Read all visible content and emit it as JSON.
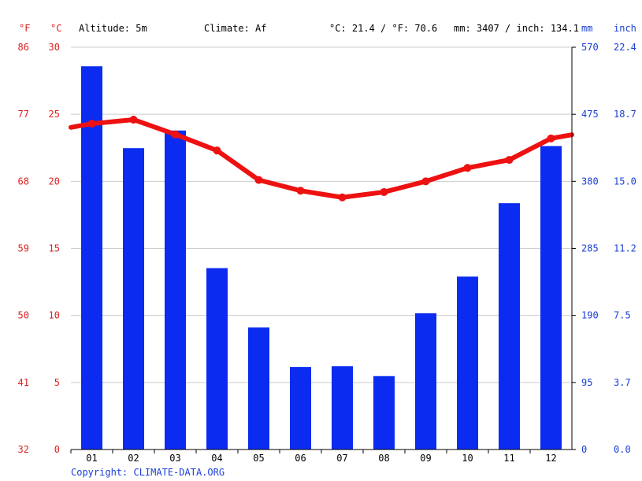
{
  "header": {
    "altitude": "Altitude: 5m",
    "climate": "Climate: Af",
    "temp_avg": "°C: 21.4 / °F: 70.6",
    "precip_total": "mm: 3407 / inch: 134.1"
  },
  "copyright": "Copyright: CLIMATE-DATA.ORG",
  "colors": {
    "temperature": "#ee1111",
    "precipitation": "#0b2cf0",
    "grid": "#cccccc",
    "red_text": "#e02020",
    "blue_text": "#1a3fd6"
  },
  "chart_data": {
    "type": "bar",
    "categories": [
      "01",
      "02",
      "03",
      "04",
      "05",
      "06",
      "07",
      "08",
      "09",
      "10",
      "11",
      "12"
    ],
    "series": [
      {
        "type": "bar",
        "axis": "right",
        "values": [
          543,
          427,
          452,
          257,
          173,
          117,
          118,
          104,
          193,
          245,
          349,
          430
        ]
      },
      {
        "type": "line",
        "axis": "left",
        "values": [
          24.3,
          24.6,
          23.5,
          22.3,
          20.1,
          19.3,
          18.8,
          19.2,
          20.0,
          21.0,
          21.6,
          23.2
        ]
      }
    ],
    "axes": {
      "left_celsius": {
        "unit": "°C",
        "ticks": [
          "0",
          "5",
          "10",
          "15",
          "20",
          "25",
          "30"
        ],
        "range": [
          0,
          30
        ]
      },
      "left_fahrenheit": {
        "unit": "°F",
        "ticks": [
          "32",
          "41",
          "50",
          "59",
          "68",
          "77",
          "86"
        ]
      },
      "right_mm": {
        "unit": "mm",
        "ticks": [
          "0",
          "95",
          "190",
          "285",
          "380",
          "475",
          "570"
        ],
        "range": [
          0,
          570
        ]
      },
      "right_inch": {
        "unit": "inch",
        "ticks": [
          "0.0",
          "3.7",
          "7.5",
          "11.2",
          "15.0",
          "18.7",
          "22.4"
        ]
      }
    },
    "grid": true
  }
}
